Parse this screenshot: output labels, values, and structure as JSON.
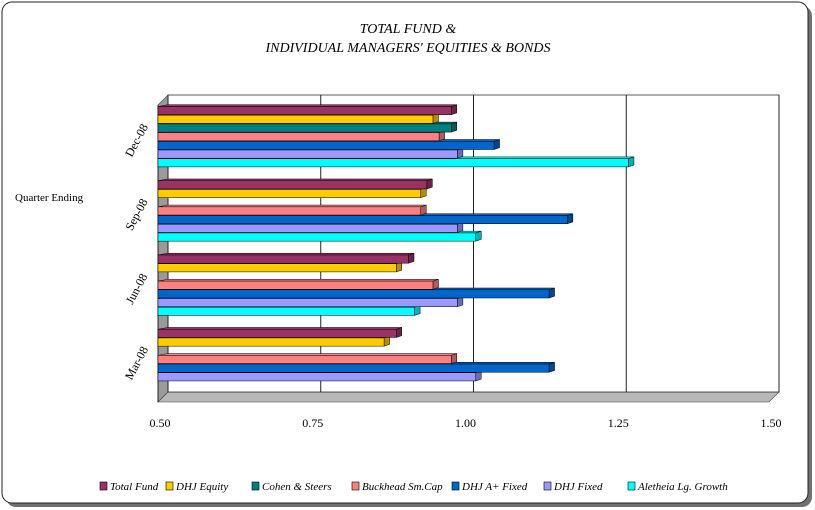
{
  "chart_data": {
    "type": "bar",
    "orientation": "horizontal",
    "style": "3d",
    "title_lines": [
      "TOTAL FUND &",
      "INDIVIDUAL MANAGERS' EQUITIES & BONDS"
    ],
    "ylabel": "Quarter Ending",
    "categories": [
      "Dec-08",
      "Sep-08",
      "Jun-08",
      "Mar-08"
    ],
    "xlim": [
      0.5,
      1.5
    ],
    "xticks": [
      "0.50",
      "0.75",
      "1.00",
      "1.25",
      "1.50"
    ],
    "grid": true,
    "legend_position": "bottom",
    "series": [
      {
        "name": "Total Fund",
        "color": "#993366",
        "values": [
          0.98,
          0.94,
          0.91,
          0.89
        ]
      },
      {
        "name": "DHJ Equity",
        "color": "#FFCC00",
        "values": [
          0.95,
          0.93,
          0.89,
          0.87
        ]
      },
      {
        "name": "Cohen & Steers",
        "color": "#008080",
        "values": [
          0.98,
          null,
          null,
          null
        ]
      },
      {
        "name": "Buckhead Sm.Cap",
        "color": "#FF8080",
        "values": [
          0.96,
          0.93,
          0.95,
          0.98
        ]
      },
      {
        "name": "DHJ A+ Fixed",
        "color": "#0066CC",
        "values": [
          1.05,
          1.17,
          1.14,
          1.14
        ]
      },
      {
        "name": "DHJ Fixed",
        "color": "#9999FF",
        "values": [
          0.99,
          0.99,
          0.99,
          1.02
        ]
      },
      {
        "name": "Aletheia Lg. Growth",
        "color": "#00FFFF",
        "values": [
          1.27,
          1.02,
          0.92,
          null
        ]
      }
    ]
  }
}
